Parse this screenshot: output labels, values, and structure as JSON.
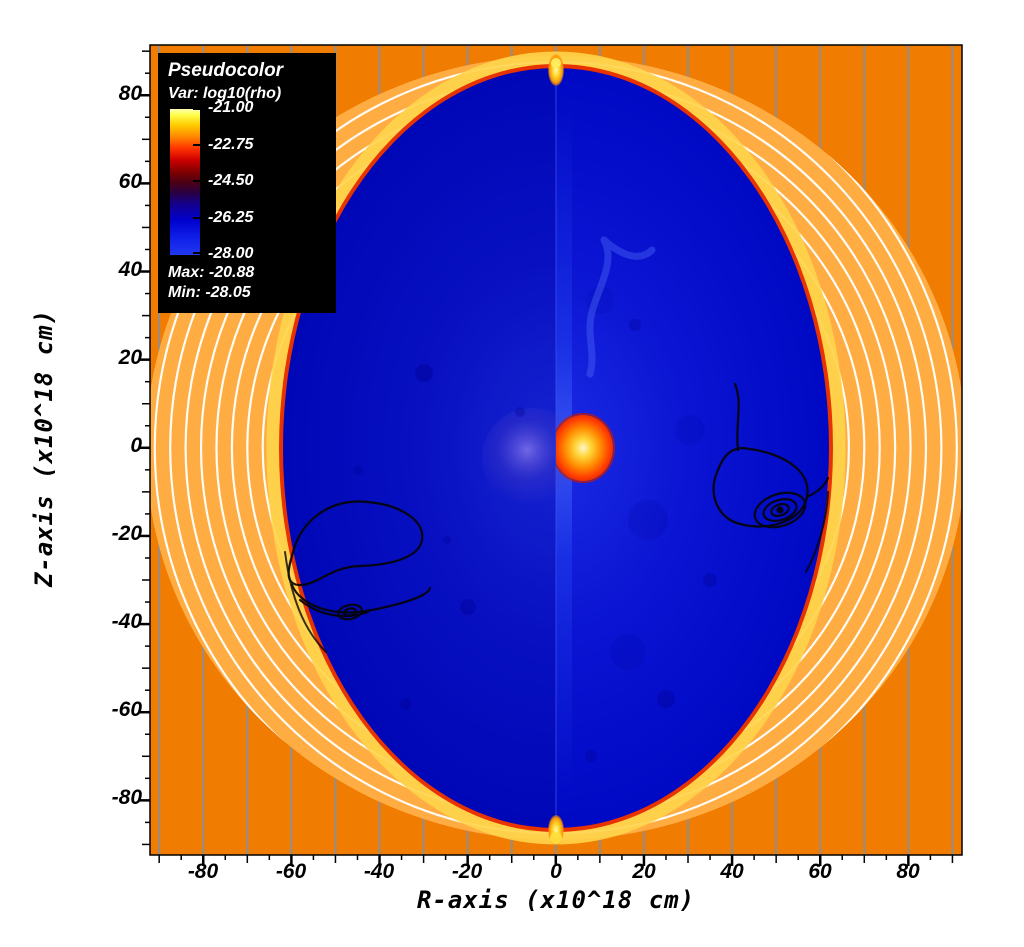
{
  "legend": {
    "title": "Pseudocolor",
    "var_label": "Var: log10(rho)",
    "tick_labels": [
      "-21.00",
      "-22.75",
      "-24.50",
      "-26.25",
      "-28.00"
    ],
    "max_label": "Max: -20.88",
    "min_label": "Min: -28.05"
  },
  "axes": {
    "x": {
      "title": "R-axis (x10^18 cm)",
      "tick_labels": [
        "-80",
        "-60",
        "-40",
        "-20",
        "0",
        "20",
        "40",
        "60",
        "80"
      ]
    },
    "y": {
      "title": "Z-axis (x10^18 cm)",
      "tick_labels": [
        "80",
        "60",
        "40",
        "20",
        "0",
        "-20",
        "-40",
        "-60",
        "-80"
      ]
    }
  },
  "colors": {
    "ambient_orange": "#F17C02",
    "shell_light_orange": "#FFAD42",
    "rim_red": "#E83200",
    "cavity_blue": "#0A14D2",
    "central_source_orange": "#FF8A00",
    "field_line_white": "#FFFFFF",
    "grid_line_gray": "#8F8F8F",
    "contour_black": "#000000",
    "legend_bg": "#000000"
  },
  "chart_data": {
    "type": "heatmap",
    "title": "Pseudocolor plot of log10(rho)",
    "variable": "log10(rho)",
    "xlabel": "R-axis (x10^18 cm)",
    "ylabel": "Z-axis (x10^18 cm)",
    "xlim": [
      -92,
      92
    ],
    "ylim": [
      -92,
      91
    ],
    "x_ticks": [
      -80,
      -60,
      -40,
      -20,
      0,
      20,
      40,
      60,
      80
    ],
    "y_ticks": [
      80,
      60,
      40,
      20,
      0,
      -20,
      -40,
      -60,
      -80
    ],
    "colorbar": {
      "tick_values": [
        -21.0,
        -22.75,
        -24.5,
        -26.25,
        -28.0
      ],
      "max": -20.88,
      "min": -28.05,
      "stops": [
        {
          "value": -21.0,
          "color": "#FFFF4D"
        },
        {
          "value": -21.9,
          "color": "#FFA300"
        },
        {
          "value": -22.75,
          "color": "#FF3300"
        },
        {
          "value": -23.6,
          "color": "#990000"
        },
        {
          "value": -24.5,
          "color": "#550022"
        },
        {
          "value": -25.4,
          "color": "#22004D"
        },
        {
          "value": -26.25,
          "color": "#0F00A8"
        },
        {
          "value": -27.1,
          "color": "#0010D8"
        },
        {
          "value": -28.0,
          "color": "#2038F0"
        }
      ]
    },
    "grid_lines": {
      "orientation": "vertical",
      "spacing": 10,
      "range": [
        -90,
        90
      ]
    },
    "field_arcs": {
      "count": 8,
      "radii_units": [
        66.5,
        70,
        73.5,
        77,
        80.5,
        84,
        87.5,
        91
      ]
    },
    "features": [
      {
        "name": "ambient_medium",
        "description": "uniform orange background outside the bubble",
        "approx_log10_rho": -22.4
      },
      {
        "name": "outer_shell",
        "shape": "annulus",
        "description": "lighter orange shell between blue cavity and ambient medium containing ~8 nested white arc lines",
        "outer_semi_axes": [
          93,
          89
        ],
        "approx_log10_rho": -21.9
      },
      {
        "name": "cavity",
        "shape": "ellipse",
        "center": [
          0,
          0
        ],
        "semi_axes": [
          62,
          87
        ],
        "description": "large deep-blue low-density interior with scattered darker blobs",
        "approx_log10_rho": -27.5
      },
      {
        "name": "shock_rim",
        "shape": "ellipse-outline",
        "semi_axes": [
          63,
          88
        ],
        "description": "thin red/orange boundary of the cavity",
        "approx_log10_rho": -23.0
      },
      {
        "name": "central_source",
        "shape": "ellipse",
        "center": [
          6,
          0
        ],
        "semi_axes": [
          7,
          7.5
        ],
        "description": "bright yellow-orange blob at origin (right half-panel); contains the maximum",
        "approx_log10_rho": -21.0
      },
      {
        "name": "inner_sphere_left_half",
        "shape": "circle",
        "center": [
          -5,
          -2
        ],
        "radius": 11,
        "description": "faint blue-purple sphere at origin in the left half-panel",
        "approx_log10_rho": -26.5
      },
      {
        "name": "polar_knots",
        "positions": [
          [
            0,
            87
          ],
          [
            0,
            -88
          ]
        ],
        "description": "small bright yellow knots at the poles of the cavity",
        "approx_log10_rho": -21.3
      },
      {
        "name": "vortex_contours_left",
        "center": [
          -45,
          -28
        ],
        "description": "black contour loops with a tight spiral near (-47,-40)"
      },
      {
        "name": "vortex_contours_right",
        "center": [
          51,
          -15
        ],
        "description": "black contour loops with a tight concentric spiral near (52,-16)"
      },
      {
        "name": "half_plane_seam",
        "position": "R=0",
        "description": "vertical seam joining two mirrored simulation half-panels"
      }
    ]
  }
}
